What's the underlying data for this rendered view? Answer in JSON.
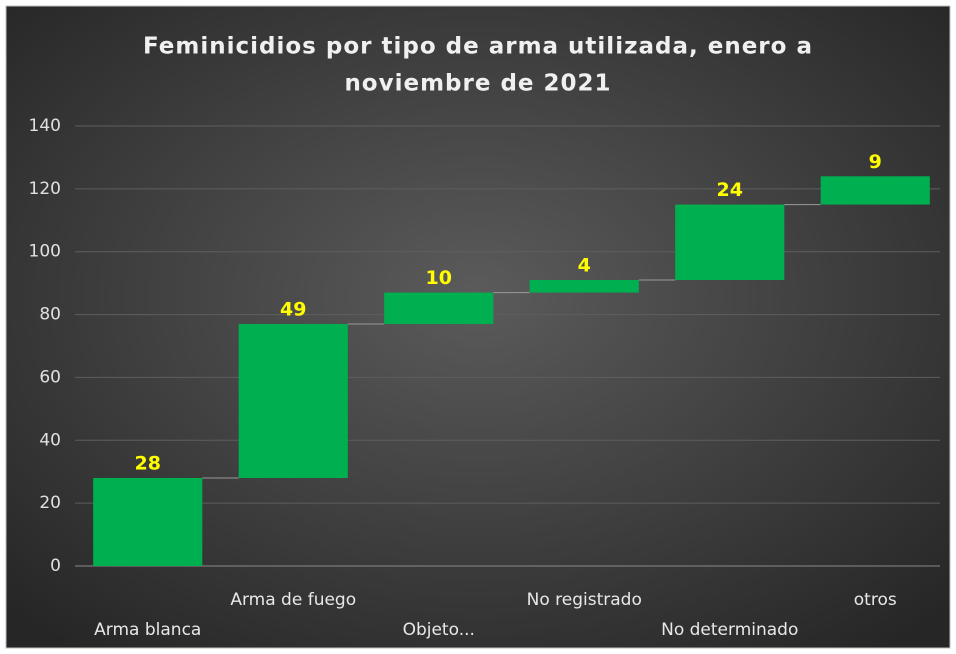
{
  "chart_data": {
    "type": "waterfall",
    "title": [
      "Feminicidios por tipo de arma utilizada, enero a",
      "noviembre de 2021"
    ],
    "categories": [
      "Arma blanca",
      "Arma de fuego",
      "Objeto...",
      "No registrado",
      "No determinado",
      "otros"
    ],
    "values": [
      28,
      49,
      10,
      4,
      24,
      9
    ],
    "color": "#00b050",
    "label_color": "#ffff00",
    "ylim": [
      0,
      140
    ],
    "yticks": [
      0,
      20,
      40,
      60,
      80,
      100,
      120,
      140
    ],
    "grid": true
  }
}
